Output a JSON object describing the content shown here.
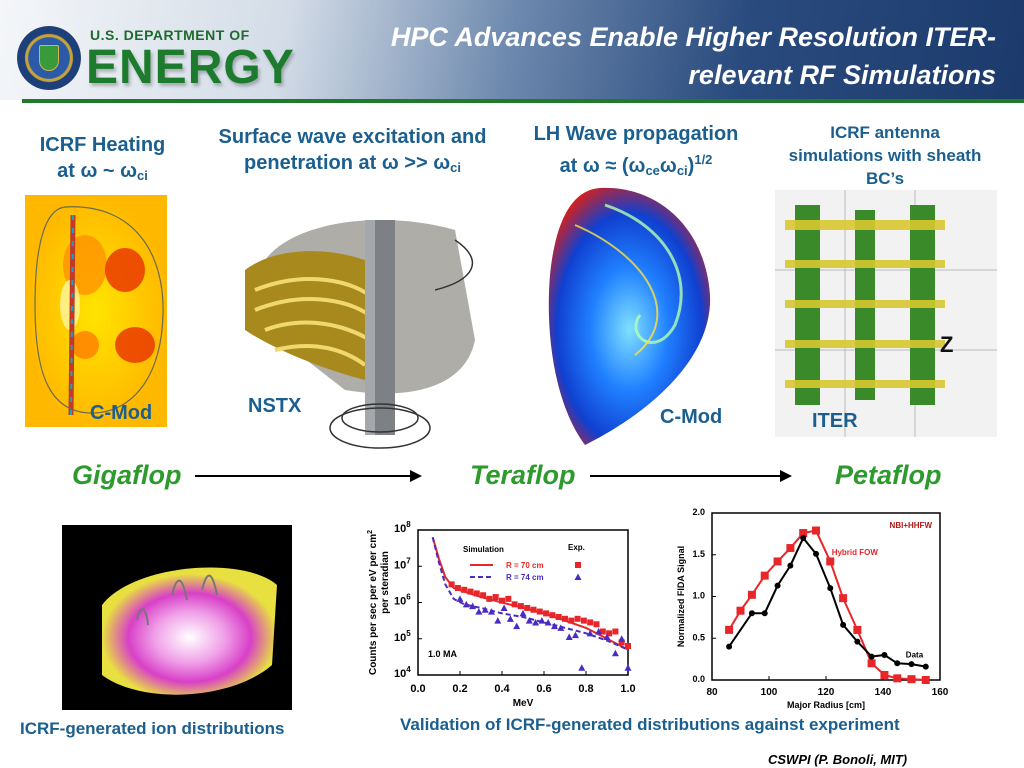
{
  "header": {
    "title_line1": "HPC Advances Enable Higher Resolution ITER-",
    "title_line2": "relevant RF Simulations",
    "logo_text_small": "U.S. DEPARTMENT OF",
    "logo_text_big": "ENERGY"
  },
  "columns": [
    {
      "heading_line1": "ICRF Heating",
      "heading_line2_prefix": "at ω ~ ω",
      "heading_line2_sub": "ci",
      "machine": "C-Mod"
    },
    {
      "heading_line1": "Surface wave excitation and",
      "heading_line2_prefix": "penetration at ω >> ω",
      "heading_line2_sub": "ci",
      "machine": "NSTX"
    },
    {
      "heading_line1": "LH Wave propagation",
      "heading_line2_prefix": "at ω ≈ (ω",
      "heading_line2_sub": "ce",
      "heading_line2_mid": "ω",
      "heading_line2_sub2": "ci",
      "heading_line2_suffix": ")",
      "heading_line2_sup": "1/2",
      "machine": "C-Mod"
    },
    {
      "heading_line1": "ICRF antenna",
      "heading_line2": "simulations with sheath",
      "heading_line3": "BC’s",
      "machine": "ITER",
      "image_label": "Z"
    }
  ],
  "scale": {
    "gigaflop": "Gigaflop",
    "teraflop": "Teraflop",
    "petaflop": "Petaflop"
  },
  "captions": {
    "ion_distributions": "ICRF-generated ion distributions",
    "validation": "Validation of ICRF-generated distributions against experiment",
    "credit": "CSWPI (P. Bonoli, MIT)"
  },
  "colors": {
    "heading": "#1a5f8f",
    "flop": "#2e9a2e",
    "red": "#e8262a",
    "blue": "#4a2bc4"
  },
  "chart_data": [
    {
      "type": "line",
      "title": "",
      "xlabel": "MeV",
      "ylabel": "Counts per sec per eV per cm² per steradian",
      "ylabel_line1": "Counts per sec per eV per cm",
      "ylabel_sup": "2",
      "ylabel_line2": "per steradian",
      "xlim": [
        0,
        1
      ],
      "ylim_log10": [
        4,
        8
      ],
      "xticks": [
        "0.0",
        "0.2",
        "0.4",
        "0.6",
        "0.8",
        "1.0"
      ],
      "yticks_log10": [
        4,
        5,
        6,
        7,
        8
      ],
      "ytick_base": "10",
      "annotation": "1.0 MA",
      "legend": {
        "sim_title": "Simulation",
        "exp_title": "Exp.",
        "placement": "top-right"
      },
      "series": [
        {
          "name": "R = 70 cm",
          "kind": "simulation",
          "style": "solid",
          "color": "#e8262a",
          "x": [
            0.07,
            0.1,
            0.13,
            0.17,
            0.22,
            0.3,
            0.4,
            0.5,
            0.6,
            0.7,
            0.8,
            0.9,
            1.0
          ],
          "log10_y": [
            7.8,
            7.2,
            6.7,
            6.4,
            6.3,
            6.15,
            6.0,
            5.85,
            5.7,
            5.5,
            5.3,
            5.0,
            4.7
          ]
        },
        {
          "name": "R = 74 cm",
          "kind": "simulation",
          "style": "dashed",
          "color": "#4a2bc4",
          "x": [
            0.07,
            0.1,
            0.13,
            0.17,
            0.22,
            0.3,
            0.4,
            0.5,
            0.6,
            0.7,
            0.8,
            0.9,
            1.0
          ],
          "log10_y": [
            7.8,
            7.1,
            6.5,
            6.1,
            5.95,
            5.85,
            5.7,
            5.6,
            5.45,
            5.3,
            5.15,
            4.95,
            4.7
          ]
        },
        {
          "name": "R = 70 cm",
          "kind": "experiment",
          "marker": "square",
          "color": "#e8262a",
          "x": [
            0.16,
            0.19,
            0.22,
            0.25,
            0.28,
            0.31,
            0.34,
            0.37,
            0.4,
            0.43,
            0.46,
            0.49,
            0.52,
            0.55,
            0.58,
            0.61,
            0.64,
            0.67,
            0.7,
            0.73,
            0.76,
            0.79,
            0.82,
            0.85,
            0.88,
            0.91,
            0.94,
            0.97,
            1.0
          ],
          "log10_y": [
            6.5,
            6.4,
            6.35,
            6.3,
            6.25,
            6.2,
            6.1,
            6.15,
            6.05,
            6.1,
            5.95,
            5.9,
            5.85,
            5.8,
            5.75,
            5.7,
            5.65,
            5.6,
            5.55,
            5.5,
            5.55,
            5.5,
            5.45,
            5.4,
            5.2,
            5.15,
            5.2,
            4.9,
            4.8
          ]
        },
        {
          "name": "R = 74 cm",
          "kind": "experiment",
          "marker": "triangle",
          "color": "#4a2bc4",
          "x": [
            0.2,
            0.23,
            0.26,
            0.29,
            0.32,
            0.35,
            0.38,
            0.41,
            0.44,
            0.47,
            0.5,
            0.53,
            0.56,
            0.59,
            0.62,
            0.65,
            0.68,
            0.72,
            0.75,
            0.78,
            0.82,
            0.86,
            0.9,
            0.94,
            0.97,
            1.0
          ],
          "log10_y": [
            6.1,
            5.95,
            5.9,
            5.75,
            5.8,
            5.75,
            5.5,
            5.85,
            5.55,
            5.35,
            5.7,
            5.5,
            5.45,
            5.5,
            5.45,
            5.35,
            5.3,
            5.05,
            5.1,
            4.2,
            5.15,
            5.2,
            5.05,
            4.6,
            5.0,
            4.2
          ]
        }
      ]
    },
    {
      "type": "line",
      "title": "",
      "xlabel": "Major Radius [cm]",
      "ylabel": "Normalized FIDA Signal",
      "xlim": [
        80,
        160
      ],
      "ylim": [
        0,
        2
      ],
      "xticks": [
        "80",
        "100",
        "120",
        "140",
        "160"
      ],
      "yticks": [
        "0.0",
        "0.5",
        "1.0",
        "1.5",
        "2.0"
      ],
      "annotation": "NBI+HHFW",
      "series": [
        {
          "name": "Hybrid FOW",
          "label": "Hybrid FOW",
          "marker": "square",
          "color": "#e8262a",
          "x": [
            86,
            90,
            94,
            98.5,
            103,
            107.5,
            112,
            116.5,
            121.5,
            126,
            131,
            136,
            140.5,
            145,
            150,
            155
          ],
          "y": [
            0.6,
            0.83,
            1.02,
            1.25,
            1.42,
            1.58,
            1.76,
            1.79,
            1.42,
            0.98,
            0.6,
            0.2,
            0.06,
            0.02,
            0.01,
            0.0
          ]
        },
        {
          "name": "Data",
          "label": "Data",
          "marker": "circle",
          "color": "#000000",
          "x": [
            86,
            94,
            98.5,
            103,
            107.5,
            112,
            116.5,
            121.5,
            126,
            131,
            136,
            140.5,
            145,
            150,
            155
          ],
          "y": [
            0.4,
            0.8,
            0.8,
            1.13,
            1.37,
            1.7,
            1.51,
            1.1,
            0.66,
            0.46,
            0.28,
            0.3,
            0.2,
            0.19,
            0.16
          ]
        }
      ]
    }
  ]
}
